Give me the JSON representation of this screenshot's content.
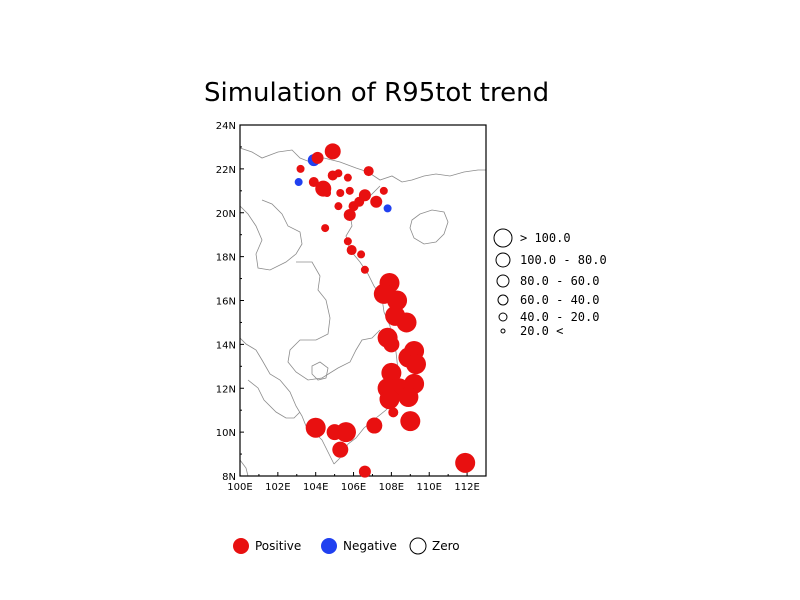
{
  "title": "Simulation of R95tot trend",
  "colors": {
    "positive": "#e81010",
    "negative": "#2040f0",
    "zero": "#ffffff",
    "coastline": "#8c8c8c"
  },
  "chart_data": {
    "type": "scatter",
    "title": "Simulation of R95tot trend",
    "xlim": [
      100,
      113
    ],
    "ylim": [
      8,
      24
    ],
    "x_ticks": [
      "100E",
      "102E",
      "104E",
      "106E",
      "108E",
      "110E",
      "112E"
    ],
    "y_ticks": [
      "8N",
      "10N",
      "12N",
      "14N",
      "16N",
      "18N",
      "20N",
      "22N",
      "24N"
    ],
    "size_legend": [
      {
        "label": "> 100.0",
        "r": 9
      },
      {
        "label": "100.0 - 80.0",
        "r": 7
      },
      {
        "label": "80.0 - 60.0",
        "r": 6
      },
      {
        "label": "60.0 - 40.0",
        "r": 5
      },
      {
        "label": "40.0 - 20.0",
        "r": 4
      },
      {
        "label": "20.0 <",
        "r": 2
      }
    ],
    "sign_legend": [
      {
        "label": "Positive",
        "kind": "positive"
      },
      {
        "label": "Negative",
        "kind": "negative"
      },
      {
        "label": "Zero",
        "kind": "zero"
      }
    ],
    "stations": [
      {
        "lon": 103.9,
        "lat": 22.4,
        "sign": "negative",
        "cls": 5
      },
      {
        "lon": 104.1,
        "lat": 22.5,
        "sign": "positive",
        "cls": 5
      },
      {
        "lon": 104.9,
        "lat": 22.8,
        "sign": "positive",
        "cls": 2
      },
      {
        "lon": 103.2,
        "lat": 22.0,
        "sign": "positive",
        "cls": 3
      },
      {
        "lon": 103.1,
        "lat": 21.4,
        "sign": "negative",
        "cls": 3
      },
      {
        "lon": 103.9,
        "lat": 21.4,
        "sign": "positive",
        "cls": 4
      },
      {
        "lon": 104.4,
        "lat": 21.1,
        "sign": "positive",
        "cls": 2
      },
      {
        "lon": 104.6,
        "lat": 20.9,
        "sign": "positive",
        "cls": 3
      },
      {
        "lon": 104.9,
        "lat": 21.7,
        "sign": "positive",
        "cls": 4
      },
      {
        "lon": 105.2,
        "lat": 21.8,
        "sign": "positive",
        "cls": 3
      },
      {
        "lon": 105.3,
        "lat": 20.9,
        "sign": "positive",
        "cls": 3
      },
      {
        "lon": 105.7,
        "lat": 21.6,
        "sign": "positive",
        "cls": 3
      },
      {
        "lon": 105.8,
        "lat": 21.0,
        "sign": "positive",
        "cls": 3
      },
      {
        "lon": 105.2,
        "lat": 20.3,
        "sign": "positive",
        "cls": 3
      },
      {
        "lon": 106.0,
        "lat": 20.3,
        "sign": "positive",
        "cls": 4
      },
      {
        "lon": 106.3,
        "lat": 20.5,
        "sign": "positive",
        "cls": 4
      },
      {
        "lon": 106.6,
        "lat": 20.8,
        "sign": "positive",
        "cls": 5
      },
      {
        "lon": 106.8,
        "lat": 21.9,
        "sign": "positive",
        "cls": 4
      },
      {
        "lon": 107.2,
        "lat": 20.5,
        "sign": "positive",
        "cls": 5
      },
      {
        "lon": 107.6,
        "lat": 21.0,
        "sign": "positive",
        "cls": 3
      },
      {
        "lon": 107.8,
        "lat": 20.2,
        "sign": "negative",
        "cls": 3
      },
      {
        "lon": 105.8,
        "lat": 19.9,
        "sign": "positive",
        "cls": 5
      },
      {
        "lon": 104.5,
        "lat": 19.3,
        "sign": "positive",
        "cls": 3
      },
      {
        "lon": 105.7,
        "lat": 18.7,
        "sign": "positive",
        "cls": 3
      },
      {
        "lon": 105.9,
        "lat": 18.3,
        "sign": "positive",
        "cls": 4
      },
      {
        "lon": 106.4,
        "lat": 18.1,
        "sign": "positive",
        "cls": 3
      },
      {
        "lon": 106.6,
        "lat": 17.4,
        "sign": "positive",
        "cls": 3
      },
      {
        "lon": 107.9,
        "lat": 16.8,
        "sign": "positive",
        "cls": 1
      },
      {
        "lon": 107.6,
        "lat": 16.3,
        "sign": "positive",
        "cls": 1
      },
      {
        "lon": 108.3,
        "lat": 16.0,
        "sign": "positive",
        "cls": 1
      },
      {
        "lon": 108.2,
        "lat": 15.3,
        "sign": "positive",
        "cls": 1
      },
      {
        "lon": 108.8,
        "lat": 15.0,
        "sign": "positive",
        "cls": 1
      },
      {
        "lon": 107.8,
        "lat": 14.3,
        "sign": "positive",
        "cls": 1
      },
      {
        "lon": 108.0,
        "lat": 14.0,
        "sign": "positive",
        "cls": 2
      },
      {
        "lon": 109.2,
        "lat": 13.7,
        "sign": "positive",
        "cls": 1
      },
      {
        "lon": 108.9,
        "lat": 13.4,
        "sign": "positive",
        "cls": 1
      },
      {
        "lon": 109.3,
        "lat": 13.1,
        "sign": "positive",
        "cls": 1
      },
      {
        "lon": 108.0,
        "lat": 12.7,
        "sign": "positive",
        "cls": 1
      },
      {
        "lon": 107.8,
        "lat": 12.0,
        "sign": "positive",
        "cls": 1
      },
      {
        "lon": 108.4,
        "lat": 12.0,
        "sign": "positive",
        "cls": 1
      },
      {
        "lon": 109.2,
        "lat": 12.2,
        "sign": "positive",
        "cls": 1
      },
      {
        "lon": 107.9,
        "lat": 11.5,
        "sign": "positive",
        "cls": 1
      },
      {
        "lon": 108.9,
        "lat": 11.6,
        "sign": "positive",
        "cls": 1
      },
      {
        "lon": 108.1,
        "lat": 10.9,
        "sign": "positive",
        "cls": 4
      },
      {
        "lon": 109.0,
        "lat": 10.5,
        "sign": "positive",
        "cls": 1
      },
      {
        "lon": 107.1,
        "lat": 10.3,
        "sign": "positive",
        "cls": 2
      },
      {
        "lon": 104.0,
        "lat": 10.2,
        "sign": "positive",
        "cls": 1
      },
      {
        "lon": 105.0,
        "lat": 10.0,
        "sign": "positive",
        "cls": 2
      },
      {
        "lon": 105.6,
        "lat": 10.0,
        "sign": "positive",
        "cls": 1
      },
      {
        "lon": 105.3,
        "lat": 9.2,
        "sign": "positive",
        "cls": 2
      },
      {
        "lon": 106.6,
        "lat": 8.2,
        "sign": "positive",
        "cls": 5
      },
      {
        "lon": 111.9,
        "lat": 8.6,
        "sign": "positive",
        "cls": 1
      }
    ]
  }
}
